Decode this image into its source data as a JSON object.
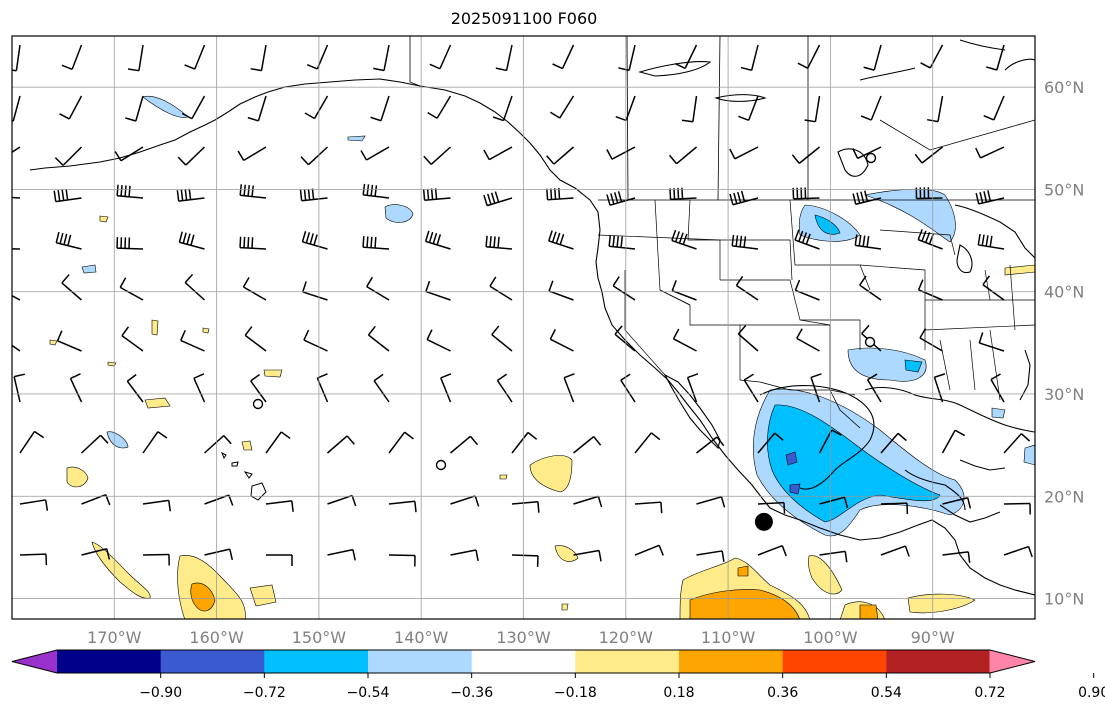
{
  "title": "2025091100 F060",
  "map": {
    "lon_range": [
      -180,
      -80
    ],
    "lat_range": [
      8,
      65
    ],
    "lon_labels": [
      "170°W",
      "160°W",
      "150°W",
      "140°W",
      "130°W",
      "120°W",
      "110°W",
      "100°W",
      "90°W"
    ],
    "lat_labels": [
      "60°N",
      "50°N",
      "40°N",
      "30°N",
      "20°N",
      "10°N"
    ],
    "gridlines": true,
    "features": [
      "coastlines",
      "country-borders",
      "state-borders",
      "wind-barbs",
      "filled-contours"
    ],
    "marker": {
      "type": "filled-circle",
      "lon": -106.5,
      "lat": 17.5,
      "color": "#000000"
    }
  },
  "colorbar": {
    "orientation": "horizontal",
    "extend": "both",
    "colors": [
      "#9932cc",
      "#00008b",
      "#3a5bd0",
      "#00bfff",
      "#add8ff",
      "#ffffff",
      "#ffeb8a",
      "#ffa500",
      "#ff4500",
      "#b22222",
      "#ff85a8"
    ],
    "tick_labels": [
      "−0.90",
      "−0.72",
      "−0.54",
      "−0.36",
      "−0.18",
      "0.18",
      "0.36",
      "0.54",
      "0.72",
      "0.90"
    ]
  }
}
